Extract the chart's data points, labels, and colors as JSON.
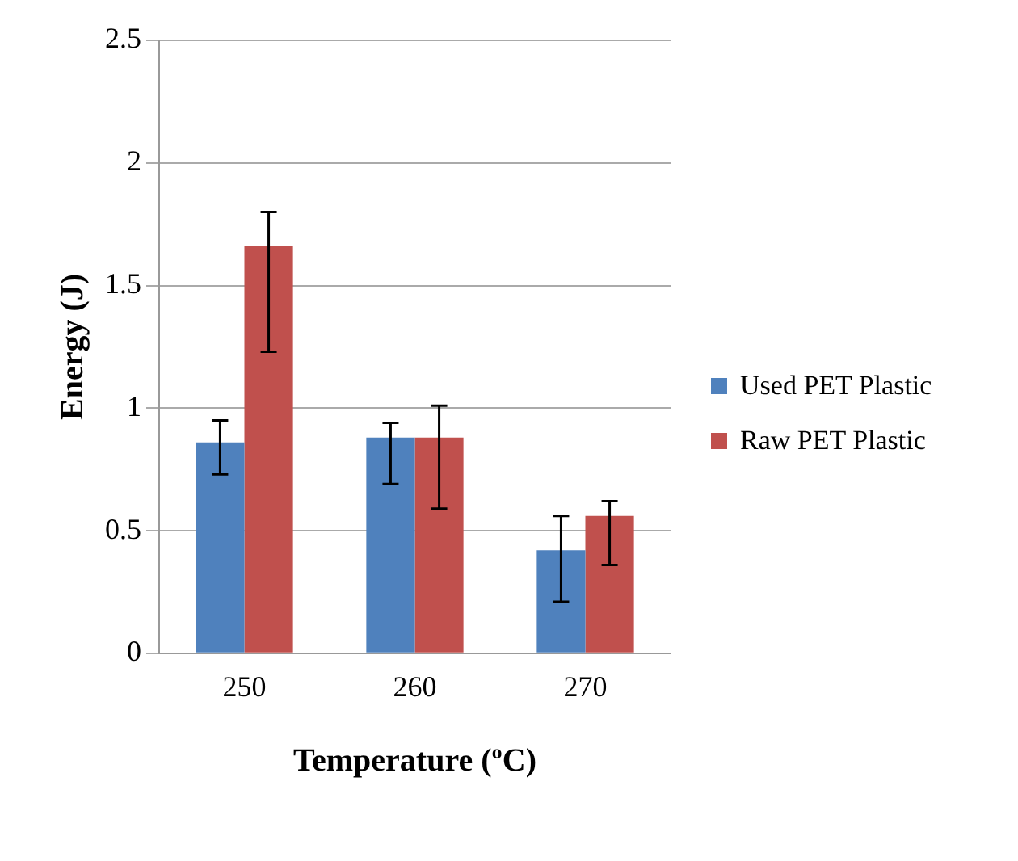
{
  "chart_data": {
    "type": "bar",
    "xlabel": "Temperature (ºC)",
    "ylabel": "Energy (J)",
    "categories": [
      "250",
      "260",
      "270"
    ],
    "series": [
      {
        "name": "Used PET Plastic",
        "color": "#4f81bd",
        "values": [
          0.86,
          0.88,
          0.42
        ],
        "errors": [
          [
            0.73,
            0.95
          ],
          [
            0.69,
            0.94
          ],
          [
            0.21,
            0.56
          ]
        ]
      },
      {
        "name": "Raw PET Plastic",
        "color": "#c0504d",
        "values": [
          1.66,
          0.88,
          0.56
        ],
        "errors": [
          [
            1.23,
            1.8
          ],
          [
            0.59,
            1.01
          ],
          [
            0.36,
            0.62
          ]
        ]
      }
    ],
    "ylim": [
      0,
      2.5
    ],
    "yticks": [
      0,
      0.5,
      1,
      1.5,
      2,
      2.5
    ],
    "grid": "y",
    "legend": "right"
  }
}
